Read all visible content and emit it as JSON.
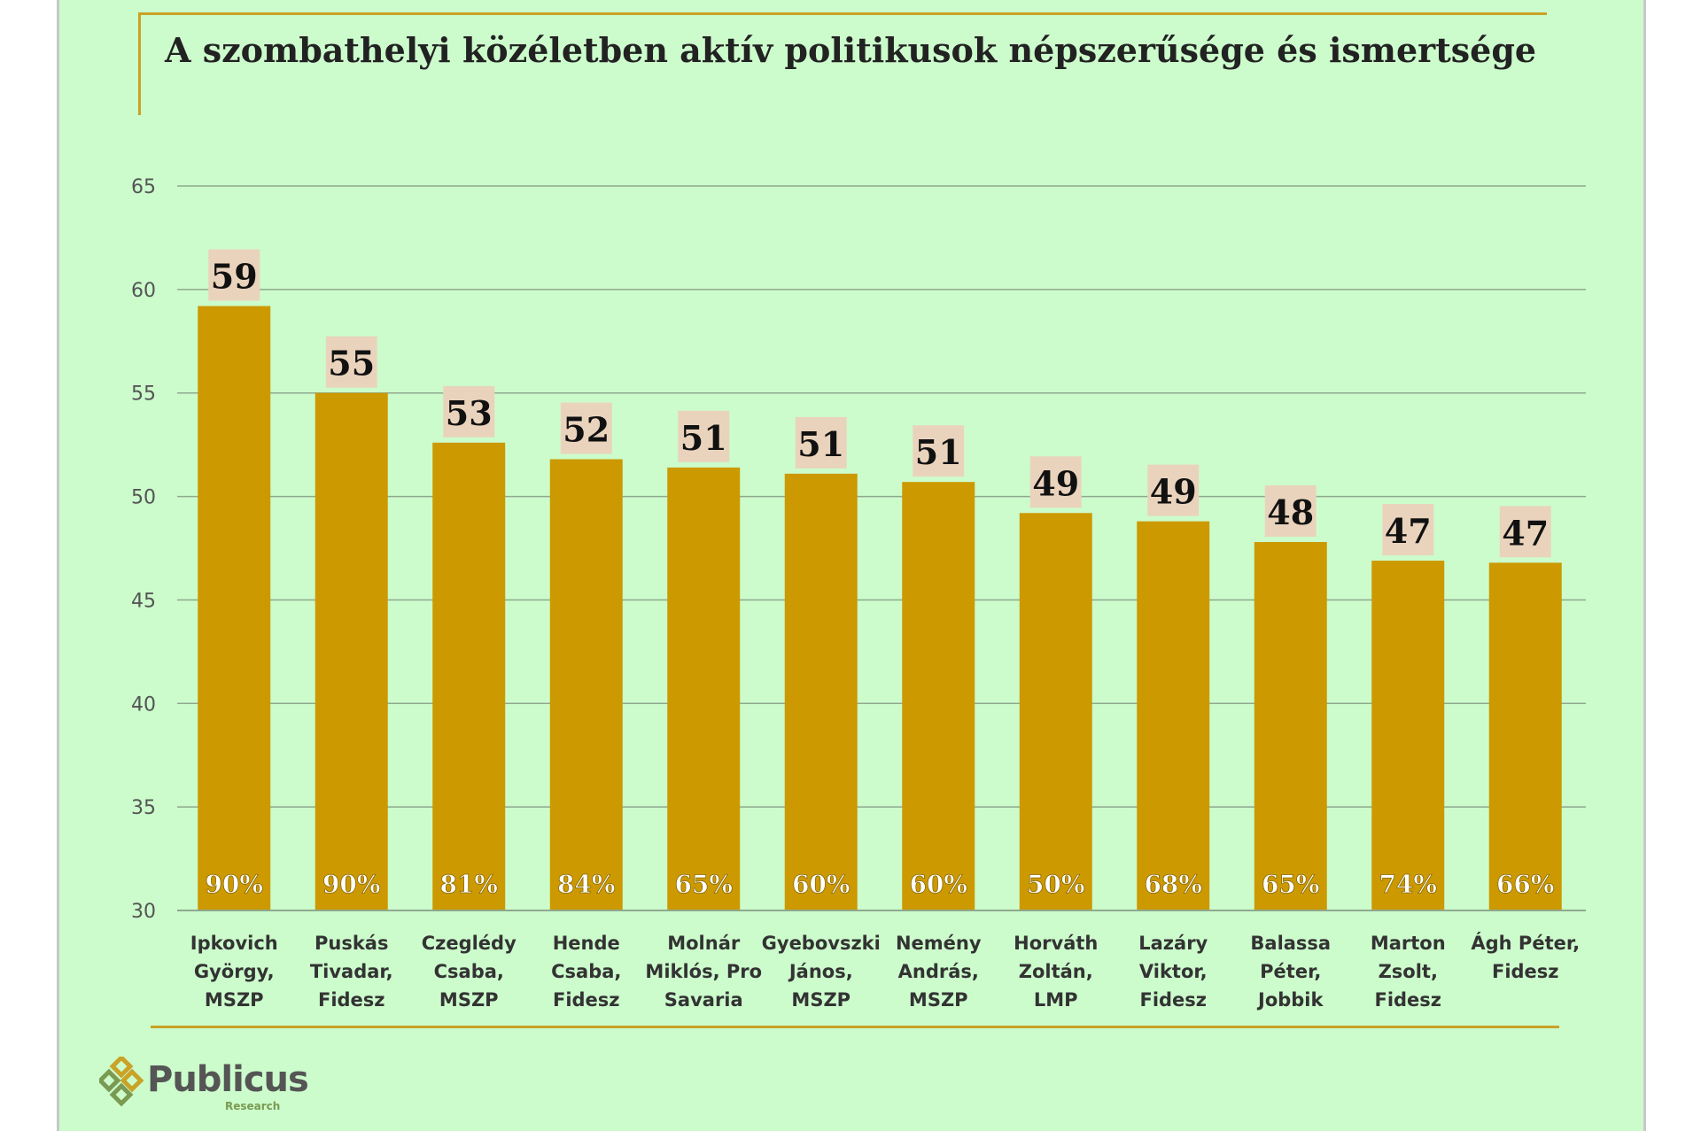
{
  "chart_data": {
    "type": "bar",
    "title": "A szombathelyi közéletben aktív politikusok népszerűsége és ismertsége",
    "categories": [
      [
        "Ipkovich",
        "György,",
        "MSZP"
      ],
      [
        "Puskás",
        "Tivadar,",
        "Fidesz"
      ],
      [
        "Czeglédy",
        "Csaba,",
        "MSZP"
      ],
      [
        "Hende",
        "Csaba,",
        "Fidesz"
      ],
      [
        "Molnár",
        "Miklós, Pro",
        "Savaria"
      ],
      [
        "Gyebovszki",
        "János,",
        "MSZP"
      ],
      [
        "Nemény",
        "András,",
        "MSZP"
      ],
      [
        "Horváth",
        "Zoltán,",
        "LMP"
      ],
      [
        "Lazáry",
        "Viktor,",
        "Fidesz"
      ],
      [
        "Balassa",
        "Péter,",
        "Jobbik"
      ],
      [
        "Marton",
        "Zsolt,",
        "Fidesz"
      ],
      [
        "Ágh Péter,",
        "Fidesz"
      ]
    ],
    "values": [
      59.2,
      55,
      52.6,
      51.8,
      51.4,
      51.1,
      50.7,
      49.2,
      48.8,
      47.8,
      46.9,
      46.8
    ],
    "value_labels": [
      "59",
      "55",
      "53",
      "52",
      "51",
      "51",
      "51",
      "49",
      "49",
      "48",
      "47",
      "47"
    ],
    "familiarity_labels": [
      "90%",
      "90%",
      "81%",
      "84%",
      "65%",
      "60%",
      "60%",
      "50%",
      "68%",
      "65%",
      "74%",
      "66%"
    ],
    "yticks": [
      "30",
      "35",
      "40",
      "45",
      "50",
      "55",
      "60",
      "65"
    ],
    "ylim": [
      30,
      65
    ],
    "grid": true,
    "colors": {
      "bar": "#cc9900",
      "label_box": "#ead3bc",
      "grid": "#8fa98f"
    }
  },
  "branding": {
    "logo_name": "Publicus",
    "logo_sub": "Research",
    "logo_icon": "diamond-cluster-icon"
  }
}
